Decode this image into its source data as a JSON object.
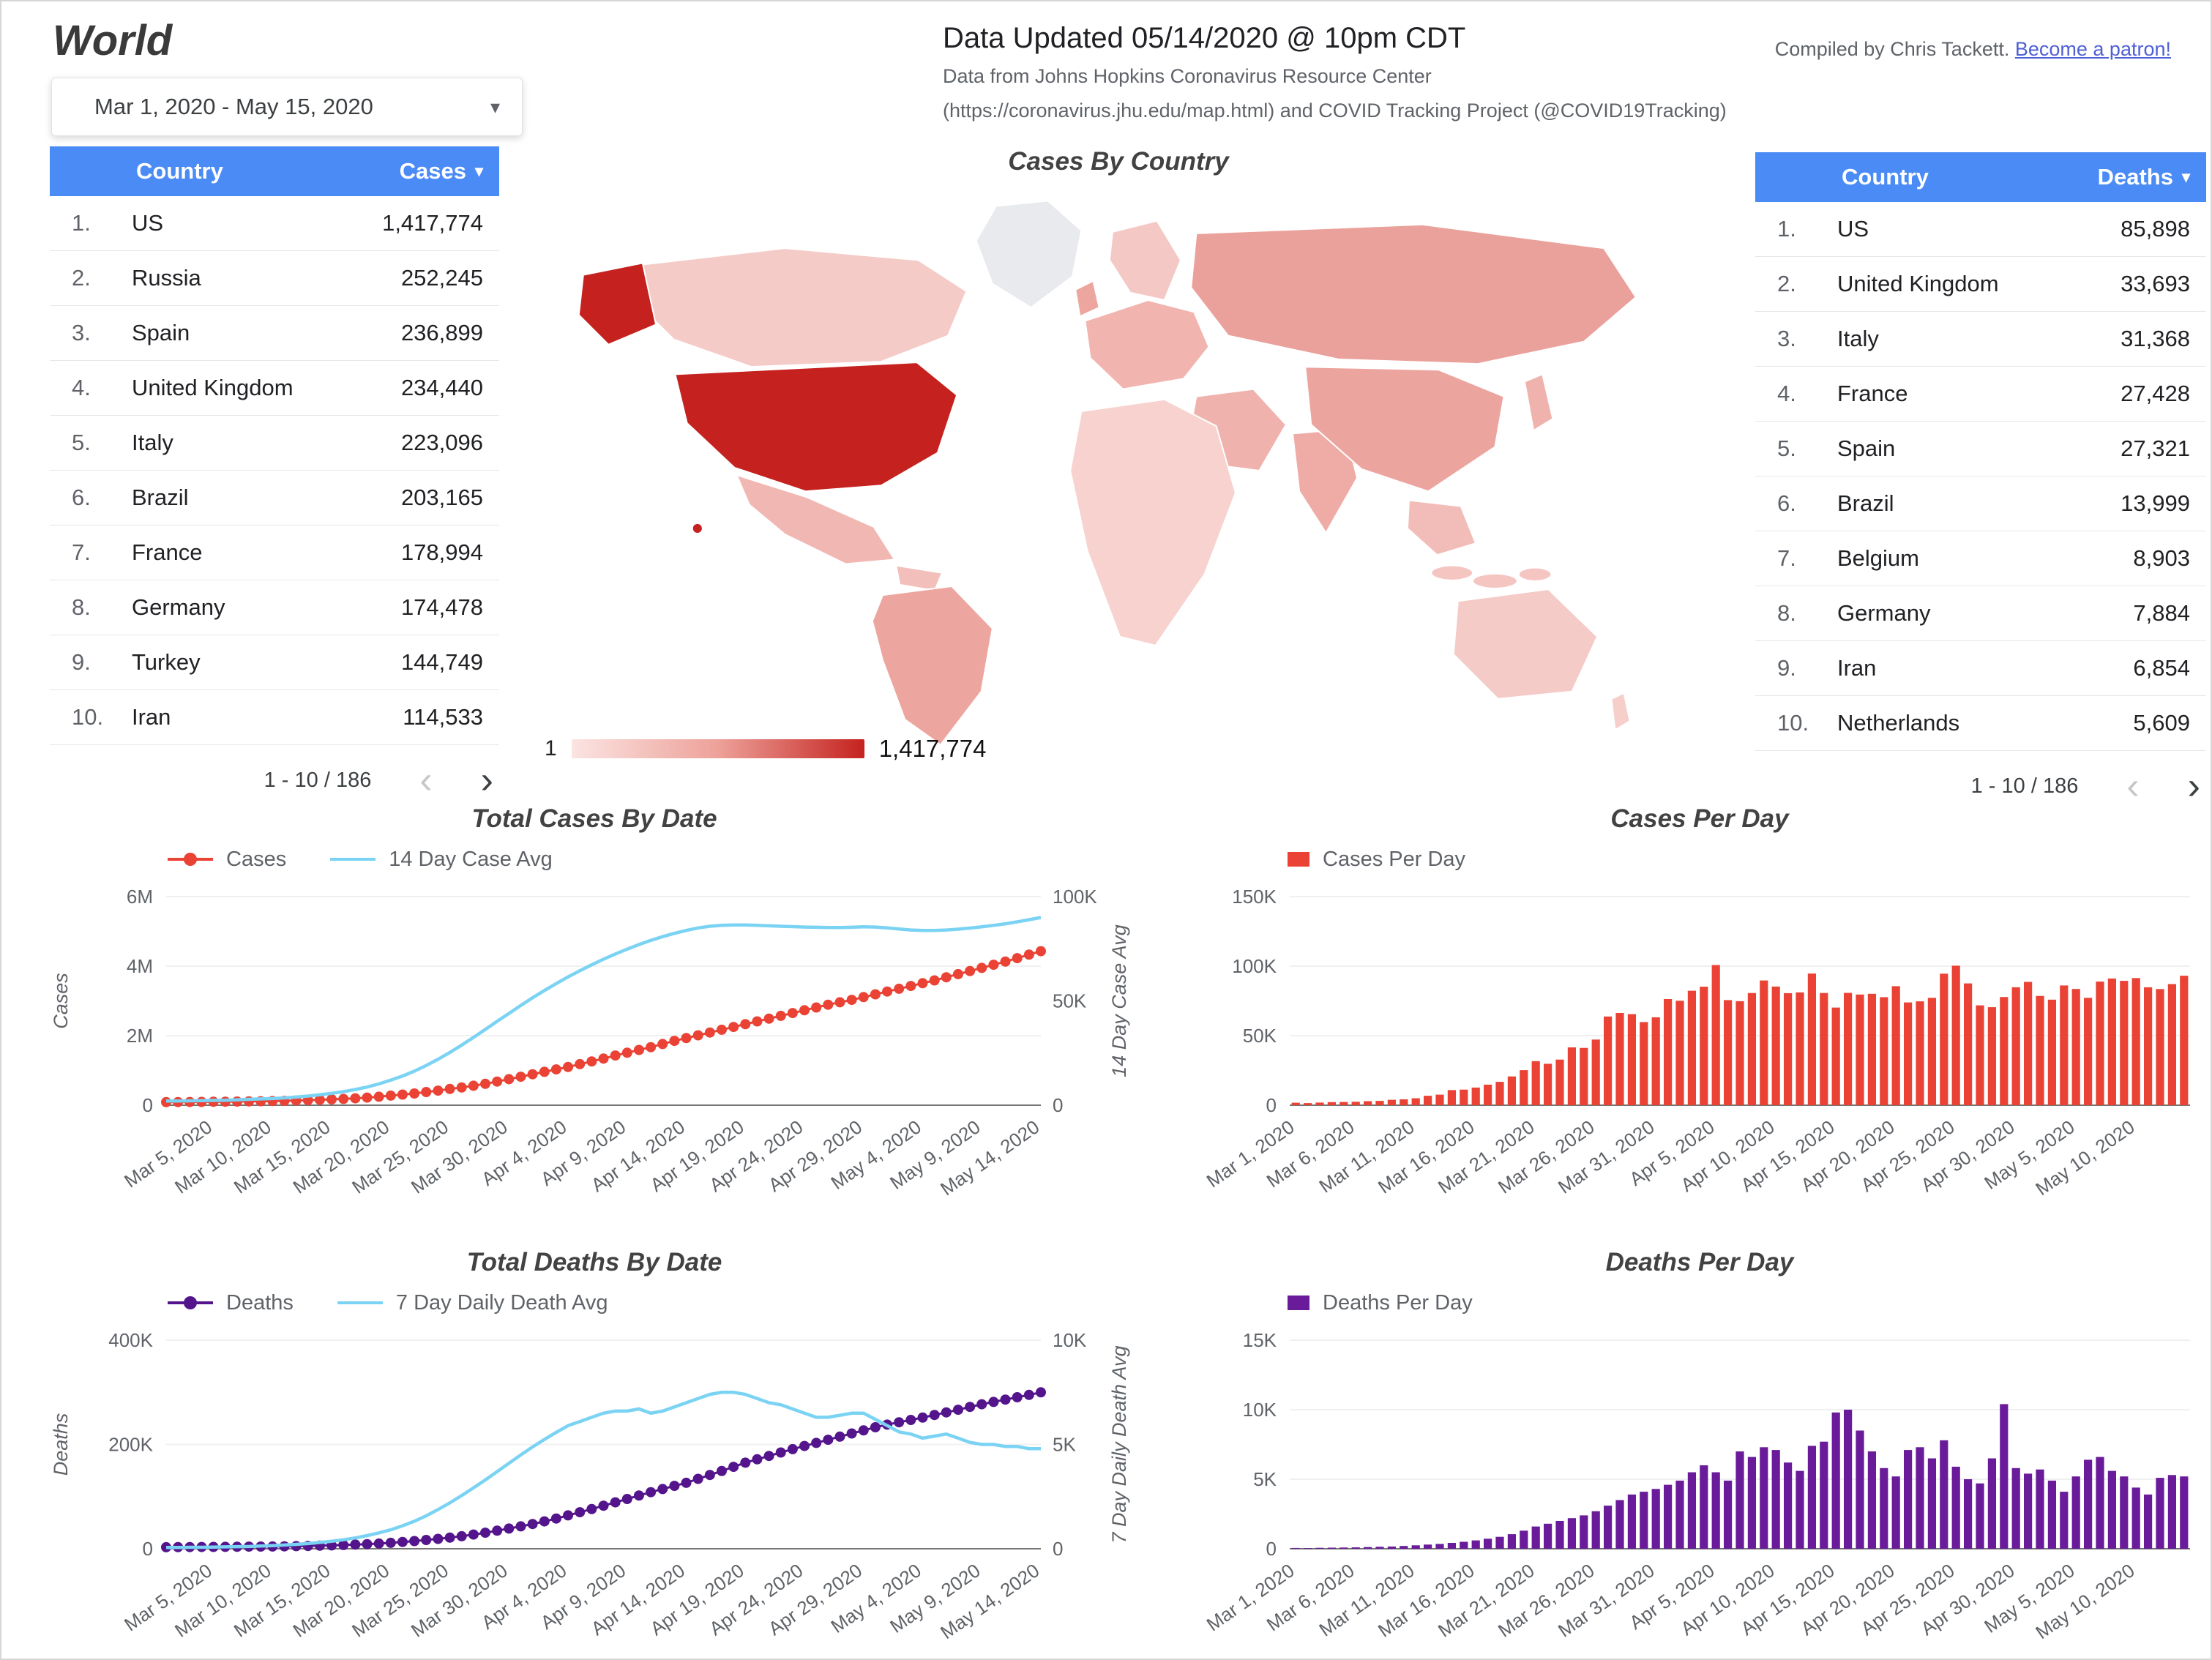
{
  "page": {
    "title": "World",
    "date_range": "Mar 1, 2020 - May 15, 2020"
  },
  "icons": {
    "dropdown": "▾",
    "sort": "▾",
    "chev_left": "‹",
    "chev_right": "›"
  },
  "header": {
    "updated": "Data Updated 05/14/2020 @ 10pm CDT",
    "source_line1": "Data from Johns Hopkins Coronavirus Resource Center",
    "source_line2": "(https://coronavirus.jhu.edu/map.html) and COVID Tracking Project (@COVID19Tracking)",
    "compiled_prefix": "Compiled by Chris Tackett. ",
    "patron_link": "Become a patron!"
  },
  "colors": {
    "table_header": "#4B8BF5",
    "cases_red": "#EA4335",
    "avg_blue": "#7BD3F4",
    "deaths_purple": "#54148C",
    "deaths_bar_purple": "#6A1B9A",
    "map_max_red": "#C5221F",
    "link": "#4F5FD5"
  },
  "cases_table": {
    "headers": [
      "Country",
      "Cases"
    ],
    "rows": [
      {
        "rank": "1.",
        "country": "US",
        "value": "1,417,774"
      },
      {
        "rank": "2.",
        "country": "Russia",
        "value": "252,245"
      },
      {
        "rank": "3.",
        "country": "Spain",
        "value": "236,899"
      },
      {
        "rank": "4.",
        "country": "United Kingdom",
        "value": "234,440"
      },
      {
        "rank": "5.",
        "country": "Italy",
        "value": "223,096"
      },
      {
        "rank": "6.",
        "country": "Brazil",
        "value": "203,165"
      },
      {
        "rank": "7.",
        "country": "France",
        "value": "178,994"
      },
      {
        "rank": "8.",
        "country": "Germany",
        "value": "174,478"
      },
      {
        "rank": "9.",
        "country": "Turkey",
        "value": "144,749"
      },
      {
        "rank": "10.",
        "country": "Iran",
        "value": "114,533"
      }
    ],
    "pagination": "1 - 10 / 186"
  },
  "deaths_table": {
    "headers": [
      "Country",
      "Deaths"
    ],
    "rows": [
      {
        "rank": "1.",
        "country": "US",
        "value": "85,898"
      },
      {
        "rank": "2.",
        "country": "United Kingdom",
        "value": "33,693"
      },
      {
        "rank": "3.",
        "country": "Italy",
        "value": "31,368"
      },
      {
        "rank": "4.",
        "country": "France",
        "value": "27,428"
      },
      {
        "rank": "5.",
        "country": "Spain",
        "value": "27,321"
      },
      {
        "rank": "6.",
        "country": "Brazil",
        "value": "13,999"
      },
      {
        "rank": "7.",
        "country": "Belgium",
        "value": "8,903"
      },
      {
        "rank": "8.",
        "country": "Germany",
        "value": "7,884"
      },
      {
        "rank": "9.",
        "country": "Iran",
        "value": "6,854"
      },
      {
        "rank": "10.",
        "country": "Netherlands",
        "value": "5,609"
      }
    ],
    "pagination": "1 - 10 / 186"
  },
  "map": {
    "title": "Cases By Country",
    "legend_min": "1",
    "legend_max": "1,417,774",
    "legend_gradient": [
      "#FBE4E2",
      "#EDA199",
      "#C5221F"
    ],
    "regions": {
      "alaska": "#C5221F",
      "united-states": "#C5221F",
      "hawaii": "#C5221F",
      "canada": "#F5CBC8",
      "greenland": "#E8EAED",
      "mexico": "#F1B7B2",
      "central-america": "#F2BFBA",
      "south-america": "#EDA69F",
      "united-kingdom": "#EDA69F",
      "scandinavia": "#F4C8C4",
      "europe": "#F1B4AF",
      "russia": "#EBA19B",
      "middle-east": "#F0B2AC",
      "africa": "#F7D2CE",
      "india": "#EFACA6",
      "east-asia": "#ECA49E",
      "japan": "#F0B2AC",
      "southeast-asia": "#F2BDB8",
      "indonesia": "#F4C5C1",
      "australia": "#F5CBC8",
      "new-zealand": "#F6CFCB"
    }
  },
  "chart_data": [
    {
      "id": "total_cases_by_date",
      "type": "line",
      "title": "Total Cases By Date",
      "units": "thousands",
      "x_start": "Mar 1, 2020",
      "x_end": "May 14, 2020",
      "tick_start_index": 4,
      "tick_step": 5,
      "tick_labels": [
        "Mar 5, 2020",
        "Mar 10, 2020",
        "Mar 15, 2020",
        "Mar 20, 2020",
        "Mar 25, 2020",
        "Mar 30, 2020",
        "Apr 4, 2020",
        "Apr 9, 2020",
        "Apr 14, 2020",
        "Apr 19, 2020",
        "Apr 24, 2020",
        "Apr 29, 2020",
        "May 4, 2020",
        "May 9, 2020",
        "May 14, 2020"
      ],
      "left_axis": {
        "label": "Cases",
        "ticks": [
          "0",
          "2M",
          "4M",
          "6M"
        ],
        "max": 6000
      },
      "right_axis": {
        "label": "14 Day Case Avg",
        "ticks": [
          "0",
          "50K",
          "100K"
        ],
        "max": 100
      },
      "series": [
        {
          "name": "Cases",
          "axis": "left",
          "style": "line-dot",
          "color": "#EA4335",
          "values": [
            88,
            90,
            92,
            95,
            98,
            102,
            106,
            110,
            114,
            119,
            126,
            134,
            145,
            156,
            168,
            182,
            198,
            219,
            244,
            276,
            305,
            337,
            379,
            420,
            467,
            510,
            560,
            615,
            680,
            750,
            820,
            890,
            960,
            1030,
            1100,
            1180,
            1260,
            1340,
            1430,
            1510,
            1590,
            1670,
            1760,
            1850,
            1930,
            2010,
            2090,
            2170,
            2250,
            2330,
            2410,
            2490,
            2570,
            2650,
            2730,
            2810,
            2890,
            2960,
            3030,
            3110,
            3190,
            3270,
            3350,
            3430,
            3510,
            3590,
            3680,
            3770,
            3860,
            3950,
            4040,
            4130,
            4230,
            4330,
            4430
          ]
        },
        {
          "name": "14 Day Case Avg",
          "axis": "right",
          "style": "line",
          "color": "#7BD3F4",
          "values": [
            2.0,
            2.0,
            2.1,
            2.2,
            2.3,
            2.4,
            2.6,
            2.8,
            3.0,
            3.2,
            3.5,
            3.9,
            4.4,
            5.0,
            5.7,
            6.5,
            7.5,
            8.7,
            10.2,
            12.0,
            14.0,
            16.3,
            19.0,
            22.0,
            25.3,
            28.8,
            32.5,
            36.3,
            40.2,
            44.0,
            47.8,
            51.5,
            55.0,
            58.3,
            61.5,
            64.5,
            67.3,
            70.0,
            72.5,
            74.8,
            77.0,
            79.0,
            80.8,
            82.4,
            83.8,
            85.0,
            85.8,
            86.2,
            86.4,
            86.4,
            86.2,
            86.0,
            85.8,
            85.6,
            85.4,
            85.3,
            85.2,
            85.2,
            85.3,
            85.5,
            85.4,
            85.0,
            84.5,
            84.0,
            83.8,
            83.8,
            84.0,
            84.4,
            84.9,
            85.5,
            86.2,
            87.0,
            87.9,
            88.9,
            90.0
          ]
        }
      ]
    },
    {
      "id": "cases_per_day",
      "type": "bar",
      "title": "Cases Per Day",
      "legend": "Cases Per Day",
      "color": "#EA4335",
      "units": "thousands",
      "x_start": "Mar 1, 2020",
      "x_end": "May 14, 2020",
      "tick_start_index": 0,
      "tick_step": 5,
      "tick_labels": [
        "Mar 1, 2020",
        "Mar 6, 2020",
        "Mar 11, 2020",
        "Mar 16, 2020",
        "Mar 21, 2020",
        "Mar 26, 2020",
        "Mar 31, 2020",
        "Apr 5, 2020",
        "Apr 10, 2020",
        "Apr 15, 2020",
        "Apr 20, 2020",
        "Apr 25, 2020",
        "Apr 30, 2020",
        "May 5, 2020",
        "May 10, 2020"
      ],
      "y_axis": {
        "ticks": [
          "0",
          "50K",
          "100K",
          "150K"
        ],
        "max": 150
      },
      "values": [
        1.8,
        1.5,
        1.9,
        2.2,
        2.3,
        2.5,
        2.9,
        3.1,
        3.9,
        4.2,
        5.0,
        6.8,
        7.6,
        10.9,
        11.2,
        12.7,
        14.8,
        16.8,
        20.7,
        25.2,
        31.7,
        29.8,
        32.8,
        41.6,
        41.2,
        47.2,
        63.8,
        66.3,
        65.5,
        59.8,
        63.2,
        76.3,
        75.1,
        82.3,
        85.2,
        100.8,
        75.6,
        74.8,
        80.7,
        89.7,
        85.3,
        80.6,
        81.1,
        94.7,
        80.7,
        70.2,
        80.8,
        79.6,
        80.1,
        77.7,
        85.6,
        73.9,
        74.7,
        77.2,
        94.6,
        100.3,
        87.6,
        71.8,
        70.5,
        77.8,
        84.8,
        88.7,
        78.6,
        75.9,
        86.1,
        83.6,
        77.2,
        88.9,
        91.1,
        89.4,
        91.4,
        84.8,
        83.5,
        87.1,
        93.1
      ]
    },
    {
      "id": "total_deaths_by_date",
      "type": "line",
      "title": "Total Deaths By Date",
      "units": "thousands",
      "x_start": "Mar 1, 2020",
      "x_end": "May 14, 2020",
      "tick_start_index": 4,
      "tick_step": 5,
      "tick_labels": [
        "Mar 5, 2020",
        "Mar 10, 2020",
        "Mar 15, 2020",
        "Mar 20, 2020",
        "Mar 25, 2020",
        "Mar 30, 2020",
        "Apr 4, 2020",
        "Apr 9, 2020",
        "Apr 14, 2020",
        "Apr 19, 2020",
        "Apr 24, 2020",
        "Apr 29, 2020",
        "May 4, 2020",
        "May 9, 2020",
        "May 14, 2020"
      ],
      "left_axis": {
        "label": "Deaths",
        "ticks": [
          "0",
          "200K",
          "400K"
        ],
        "max": 400
      },
      "right_axis": {
        "label": "7 Day Daily Death Avg",
        "ticks": [
          "0",
          "5K",
          "10K"
        ],
        "max": 10
      },
      "series": [
        {
          "name": "Deaths",
          "axis": "left",
          "style": "line-dot",
          "color": "#54148C",
          "values": [
            3.0,
            3.1,
            3.2,
            3.3,
            3.5,
            3.6,
            3.8,
            4.0,
            4.2,
            4.4,
            4.7,
            5.0,
            5.4,
            5.9,
            6.5,
            7.2,
            8.0,
            8.9,
            10.0,
            11.4,
            13.0,
            14.8,
            16.8,
            19.0,
            21.3,
            24.0,
            27.2,
            30.7,
            34.6,
            38.7,
            43.0,
            47.5,
            52.5,
            58.0,
            64.0,
            70.0,
            76.0,
            82.5,
            89.0,
            95.5,
            102.0,
            108.5,
            114.5,
            120.5,
            126.5,
            134.0,
            141.5,
            149.0,
            157.0,
            165.0,
            171.5,
            178.0,
            184.5,
            191.0,
            197.0,
            203.0,
            209.0,
            215.0,
            221.0,
            227.0,
            233.0,
            238.0,
            242.5,
            247.0,
            251.5,
            256.5,
            261.5,
            266.5,
            272.0,
            277.0,
            281.5,
            286.0,
            290.5,
            295.0,
            300.0
          ]
        },
        {
          "name": "7 Day Daily Death Avg",
          "axis": "right",
          "style": "line",
          "color": "#7BD3F4",
          "values": [
            0.06,
            0.06,
            0.07,
            0.07,
            0.08,
            0.09,
            0.1,
            0.11,
            0.13,
            0.15,
            0.18,
            0.21,
            0.25,
            0.3,
            0.36,
            0.43,
            0.52,
            0.63,
            0.76,
            0.91,
            1.1,
            1.32,
            1.58,
            1.88,
            2.2,
            2.55,
            2.92,
            3.3,
            3.7,
            4.1,
            4.5,
            4.88,
            5.24,
            5.58,
            5.9,
            6.1,
            6.3,
            6.5,
            6.6,
            6.6,
            6.7,
            6.5,
            6.6,
            6.8,
            7.0,
            7.2,
            7.4,
            7.5,
            7.5,
            7.4,
            7.2,
            7.0,
            6.9,
            6.7,
            6.5,
            6.3,
            6.3,
            6.4,
            6.5,
            6.5,
            6.2,
            5.9,
            5.6,
            5.5,
            5.3,
            5.4,
            5.5,
            5.3,
            5.1,
            5.0,
            5.0,
            4.9,
            4.9,
            4.8,
            4.8
          ]
        }
      ]
    },
    {
      "id": "deaths_per_day",
      "type": "bar",
      "title": "Deaths Per Day",
      "legend": "Deaths Per Day",
      "color": "#6A1B9A",
      "units": "thousands",
      "x_start": "Mar 1, 2020",
      "x_end": "May 14, 2020",
      "tick_start_index": 0,
      "tick_step": 5,
      "tick_labels": [
        "Mar 1, 2020",
        "Mar 6, 2020",
        "Mar 11, 2020",
        "Mar 16, 2020",
        "Mar 21, 2020",
        "Mar 26, 2020",
        "Mar 31, 2020",
        "Apr 5, 2020",
        "Apr 10, 2020",
        "Apr 15, 2020",
        "Apr 20, 2020",
        "Apr 25, 2020",
        "Apr 30, 2020",
        "May 5, 2020",
        "May 10, 2020"
      ],
      "y_axis": {
        "ticks": [
          "0",
          "5K",
          "10K",
          "15K"
        ],
        "max": 15
      },
      "values": [
        0.06,
        0.05,
        0.07,
        0.08,
        0.09,
        0.1,
        0.12,
        0.14,
        0.16,
        0.2,
        0.25,
        0.3,
        0.35,
        0.42,
        0.5,
        0.6,
        0.72,
        0.86,
        1.05,
        1.3,
        1.6,
        1.8,
        2.0,
        2.2,
        2.4,
        2.7,
        3.1,
        3.5,
        3.9,
        4.1,
        4.3,
        4.6,
        4.9,
        5.5,
        6.0,
        5.5,
        4.9,
        7.0,
        6.6,
        7.3,
        7.1,
        6.2,
        5.6,
        7.4,
        7.7,
        9.8,
        10.0,
        8.5,
        7.0,
        5.8,
        5.2,
        7.1,
        7.3,
        6.5,
        7.8,
        5.9,
        5.0,
        4.7,
        6.5,
        10.4,
        5.8,
        5.4,
        5.7,
        4.9,
        4.1,
        5.2,
        6.4,
        6.6,
        5.6,
        5.2,
        4.4,
        3.9,
        5.1,
        5.3,
        5.2
      ]
    }
  ]
}
